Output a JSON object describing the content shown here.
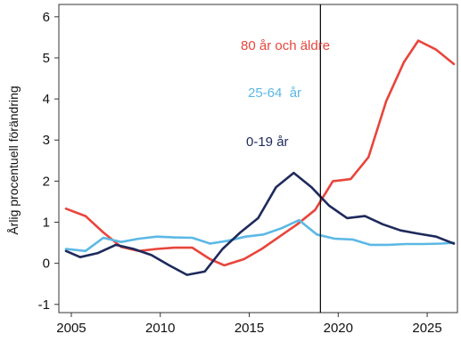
{
  "chart_data": {
    "type": "line",
    "title": "",
    "xlabel": "",
    "ylabel": "Årlig procentuell förändring",
    "xlim": [
      2004.3,
      2026.7
    ],
    "ylim": [
      -1.2,
      6.3
    ],
    "xticks": [
      2005,
      2010,
      2015,
      2020,
      2025
    ],
    "xtick_labels": [
      "2005",
      "2010",
      "2015",
      "2020",
      "2025"
    ],
    "yticks": [
      -1,
      0,
      1,
      2,
      3,
      4,
      5,
      6
    ],
    "ytick_labels": [
      "-1",
      "0",
      "1",
      "2",
      "3",
      "4",
      "5",
      "6"
    ],
    "grid": false,
    "legend": "inline labels",
    "vline_x": 2019,
    "vline_color": "#000000",
    "series": [
      {
        "name": "80 år och äldre",
        "color": "#e8453c",
        "x": [
          2004.7,
          2005.8,
          2006.8,
          2007.8,
          2008.8,
          2009.8,
          2010.8,
          2011.8,
          2012.8,
          2013.6,
          2014.7,
          2015.7,
          2016.7,
          2017.7,
          2018.7,
          2019.7,
          2020.7,
          2021.7,
          2022.7,
          2023.7,
          2024.5,
          2025.5,
          2026.5
        ],
        "y": [
          1.33,
          1.15,
          0.75,
          0.4,
          0.3,
          0.35,
          0.38,
          0.38,
          0.1,
          -0.05,
          0.1,
          0.35,
          0.65,
          0.95,
          1.3,
          2.0,
          2.05,
          2.58,
          3.95,
          4.9,
          5.42,
          5.2,
          4.85
        ]
      },
      {
        "name": "25-64  år",
        "color": "#5cb8e6",
        "x": [
          2004.7,
          2005.8,
          2006.8,
          2007.8,
          2008.8,
          2009.8,
          2010.8,
          2011.8,
          2012.8,
          2013.8,
          2014.8,
          2015.8,
          2016.8,
          2017.8,
          2018.8,
          2019.8,
          2020.8,
          2021.8,
          2022.8,
          2023.8,
          2024.8,
          2025.8,
          2026.5
        ],
        "y": [
          0.35,
          0.3,
          0.62,
          0.52,
          0.6,
          0.65,
          0.63,
          0.62,
          0.48,
          0.55,
          0.65,
          0.7,
          0.85,
          1.05,
          0.7,
          0.6,
          0.58,
          0.45,
          0.45,
          0.47,
          0.47,
          0.48,
          0.5
        ]
      },
      {
        "name": "0-19 år",
        "color": "#1e2a5c",
        "x": [
          2004.7,
          2005.5,
          2006.5,
          2007.5,
          2008.5,
          2009.5,
          2010.5,
          2011.5,
          2012.5,
          2013.5,
          2014.5,
          2015.5,
          2016.5,
          2017.5,
          2018.5,
          2019.5,
          2020.5,
          2021.5,
          2022.5,
          2023.5,
          2024.5,
          2025.5,
          2026.5
        ],
        "y": [
          0.3,
          0.15,
          0.25,
          0.45,
          0.35,
          0.2,
          -0.05,
          -0.28,
          -0.2,
          0.35,
          0.75,
          1.1,
          1.85,
          2.2,
          1.85,
          1.4,
          1.1,
          1.15,
          0.95,
          0.8,
          0.72,
          0.65,
          0.48
        ]
      }
    ]
  }
}
